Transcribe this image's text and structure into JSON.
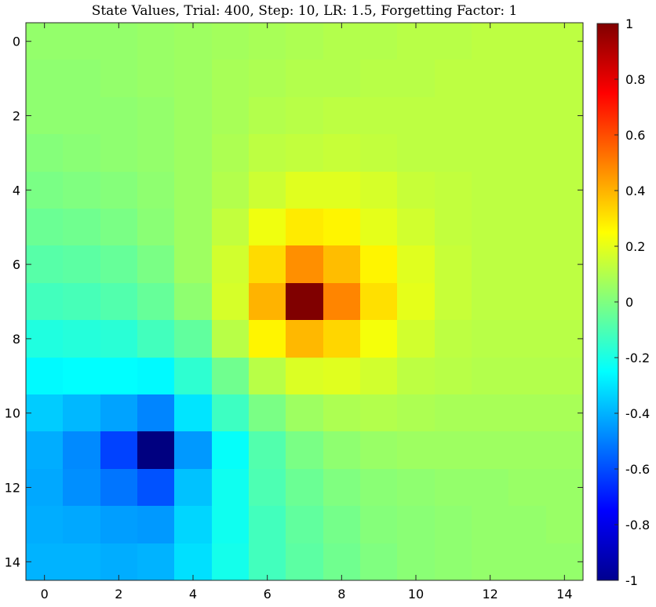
{
  "chart_data": {
    "type": "heatmap",
    "title": "State Values, Trial: 400, Step: 10, LR: 1.5, Forgetting Factor: 1",
    "xlabel": "",
    "ylabel": "",
    "x": [
      0,
      1,
      2,
      3,
      4,
      5,
      6,
      7,
      8,
      9,
      10,
      11,
      12,
      13,
      14
    ],
    "y": [
      0,
      1,
      2,
      3,
      4,
      5,
      6,
      7,
      8,
      9,
      10,
      11,
      12,
      13,
      14
    ],
    "x_ticks": [
      0,
      2,
      4,
      6,
      8,
      10,
      12,
      14
    ],
    "y_ticks": [
      0,
      2,
      4,
      6,
      8,
      10,
      12,
      14
    ],
    "x_tick_labels": [
      "0",
      "2",
      "4",
      "6",
      "8",
      "10",
      "12",
      "14"
    ],
    "y_tick_labels": [
      "0",
      "2",
      "4",
      "6",
      "8",
      "10",
      "12",
      "14"
    ],
    "y_axis_direction": "reversed",
    "colormap": "jet",
    "clim": [
      -1,
      1
    ],
    "colorbar_ticks": [
      1,
      0.8,
      0.6,
      0.4,
      0.2,
      0,
      -0.2,
      -0.4,
      -0.6,
      -0.8,
      -1
    ],
    "colorbar_tick_labels": [
      "1",
      "0.8",
      "0.6",
      "0.4",
      "0.2",
      "0",
      "-0.2",
      "-0.4",
      "-0.6",
      "-0.8",
      "-1"
    ],
    "values": [
      [
        0.04,
        0.04,
        0.04,
        0.05,
        0.06,
        0.07,
        0.08,
        0.09,
        0.1,
        0.1,
        0.11,
        0.11,
        0.12,
        0.12,
        0.12
      ],
      [
        0.03,
        0.03,
        0.04,
        0.05,
        0.06,
        0.08,
        0.09,
        0.1,
        0.1,
        0.11,
        0.11,
        0.12,
        0.12,
        0.12,
        0.12
      ],
      [
        0.03,
        0.03,
        0.03,
        0.04,
        0.06,
        0.08,
        0.1,
        0.11,
        0.12,
        0.12,
        0.12,
        0.12,
        0.12,
        0.12,
        0.12
      ],
      [
        0.01,
        0.02,
        0.03,
        0.04,
        0.06,
        0.09,
        0.12,
        0.13,
        0.14,
        0.13,
        0.12,
        0.12,
        0.12,
        0.12,
        0.12
      ],
      [
        -0.01,
        0.0,
        0.01,
        0.03,
        0.06,
        0.1,
        0.15,
        0.19,
        0.19,
        0.17,
        0.14,
        0.13,
        0.12,
        0.12,
        0.12
      ],
      [
        -0.04,
        -0.03,
        -0.01,
        0.02,
        0.06,
        0.13,
        0.22,
        0.29,
        0.27,
        0.2,
        0.16,
        0.13,
        0.12,
        0.12,
        0.12
      ],
      [
        -0.08,
        -0.07,
        -0.05,
        -0.01,
        0.06,
        0.16,
        0.32,
        0.47,
        0.38,
        0.27,
        0.19,
        0.14,
        0.12,
        0.12,
        0.12
      ],
      [
        -0.12,
        -0.11,
        -0.09,
        -0.05,
        0.03,
        0.17,
        0.4,
        1.0,
        0.49,
        0.31,
        0.2,
        0.14,
        0.12,
        0.12,
        0.12
      ],
      [
        -0.19,
        -0.18,
        -0.17,
        -0.12,
        -0.06,
        0.11,
        0.27,
        0.39,
        0.33,
        0.23,
        0.16,
        0.12,
        0.11,
        0.11,
        0.11
      ],
      [
        -0.26,
        -0.25,
        -0.25,
        -0.26,
        -0.16,
        -0.03,
        0.11,
        0.18,
        0.19,
        0.16,
        0.12,
        0.11,
        0.1,
        0.1,
        0.1
      ],
      [
        -0.35,
        -0.39,
        -0.43,
        -0.49,
        -0.3,
        -0.13,
        -0.01,
        0.06,
        0.09,
        0.1,
        0.09,
        0.08,
        0.08,
        0.08,
        0.08
      ],
      [
        -0.41,
        -0.48,
        -0.62,
        -1.0,
        -0.45,
        -0.24,
        -0.09,
        -0.01,
        0.03,
        0.05,
        0.06,
        0.06,
        0.06,
        0.06,
        0.06
      ],
      [
        -0.42,
        -0.47,
        -0.52,
        -0.59,
        -0.37,
        -0.22,
        -0.1,
        -0.04,
        0.0,
        0.02,
        0.03,
        0.04,
        0.04,
        0.05,
        0.05
      ],
      [
        -0.41,
        -0.42,
        -0.44,
        -0.45,
        -0.33,
        -0.22,
        -0.12,
        -0.06,
        -0.02,
        0.01,
        0.02,
        0.03,
        0.04,
        0.04,
        0.05
      ],
      [
        -0.4,
        -0.4,
        -0.41,
        -0.4,
        -0.31,
        -0.21,
        -0.12,
        -0.07,
        -0.03,
        0.0,
        0.02,
        0.03,
        0.04,
        0.04,
        0.04
      ]
    ]
  }
}
